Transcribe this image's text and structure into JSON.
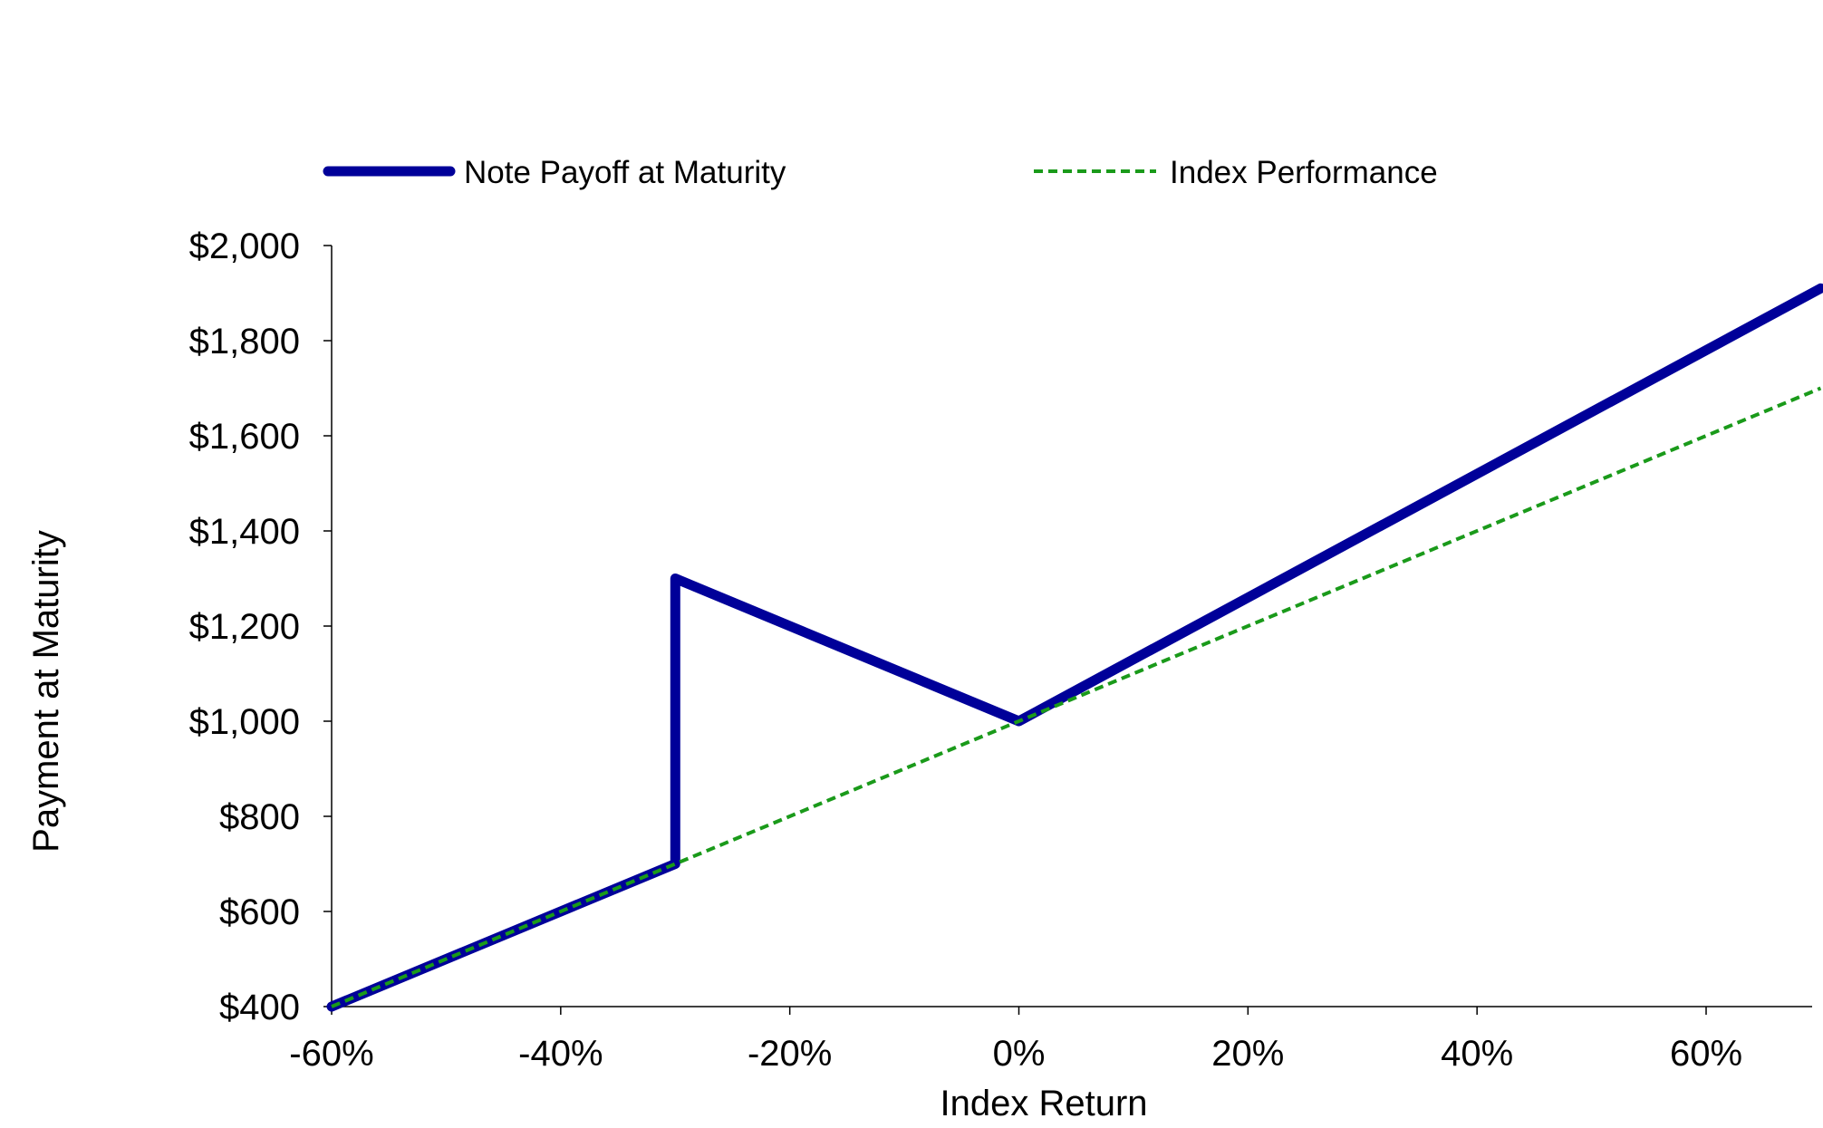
{
  "chart_data": {
    "type": "line",
    "xlabel": "Index Return",
    "ylabel": "Payment at Maturity",
    "xlim": [
      -60,
      70
    ],
    "ylim": [
      400,
      2000
    ],
    "x_ticks": [
      -60,
      -40,
      -20,
      0,
      20,
      40,
      60
    ],
    "x_tick_labels": [
      "-60%",
      "-40%",
      "-20%",
      "0%",
      "20%",
      "40%",
      "60%"
    ],
    "y_ticks": [
      400,
      600,
      800,
      1000,
      1200,
      1400,
      1600,
      1800,
      2000
    ],
    "y_tick_labels": [
      "$400",
      "$600",
      "$800",
      "$1,000",
      "$1,200",
      "$1,400",
      "$1,600",
      "$1,800",
      "$2,000"
    ],
    "grid": false,
    "legend_position": "top",
    "series": [
      {
        "name": "Note Payoff at Maturity",
        "color": "#000099",
        "style": "solid",
        "points": [
          [
            -60,
            400
          ],
          [
            -30,
            700
          ],
          [
            -30,
            1300
          ],
          [
            0,
            1000
          ],
          [
            70,
            1910
          ]
        ]
      },
      {
        "name": "Index Performance",
        "color": "#1a9a1a",
        "style": "dashed",
        "points": [
          [
            -60,
            400
          ],
          [
            70,
            1700
          ]
        ]
      }
    ]
  }
}
